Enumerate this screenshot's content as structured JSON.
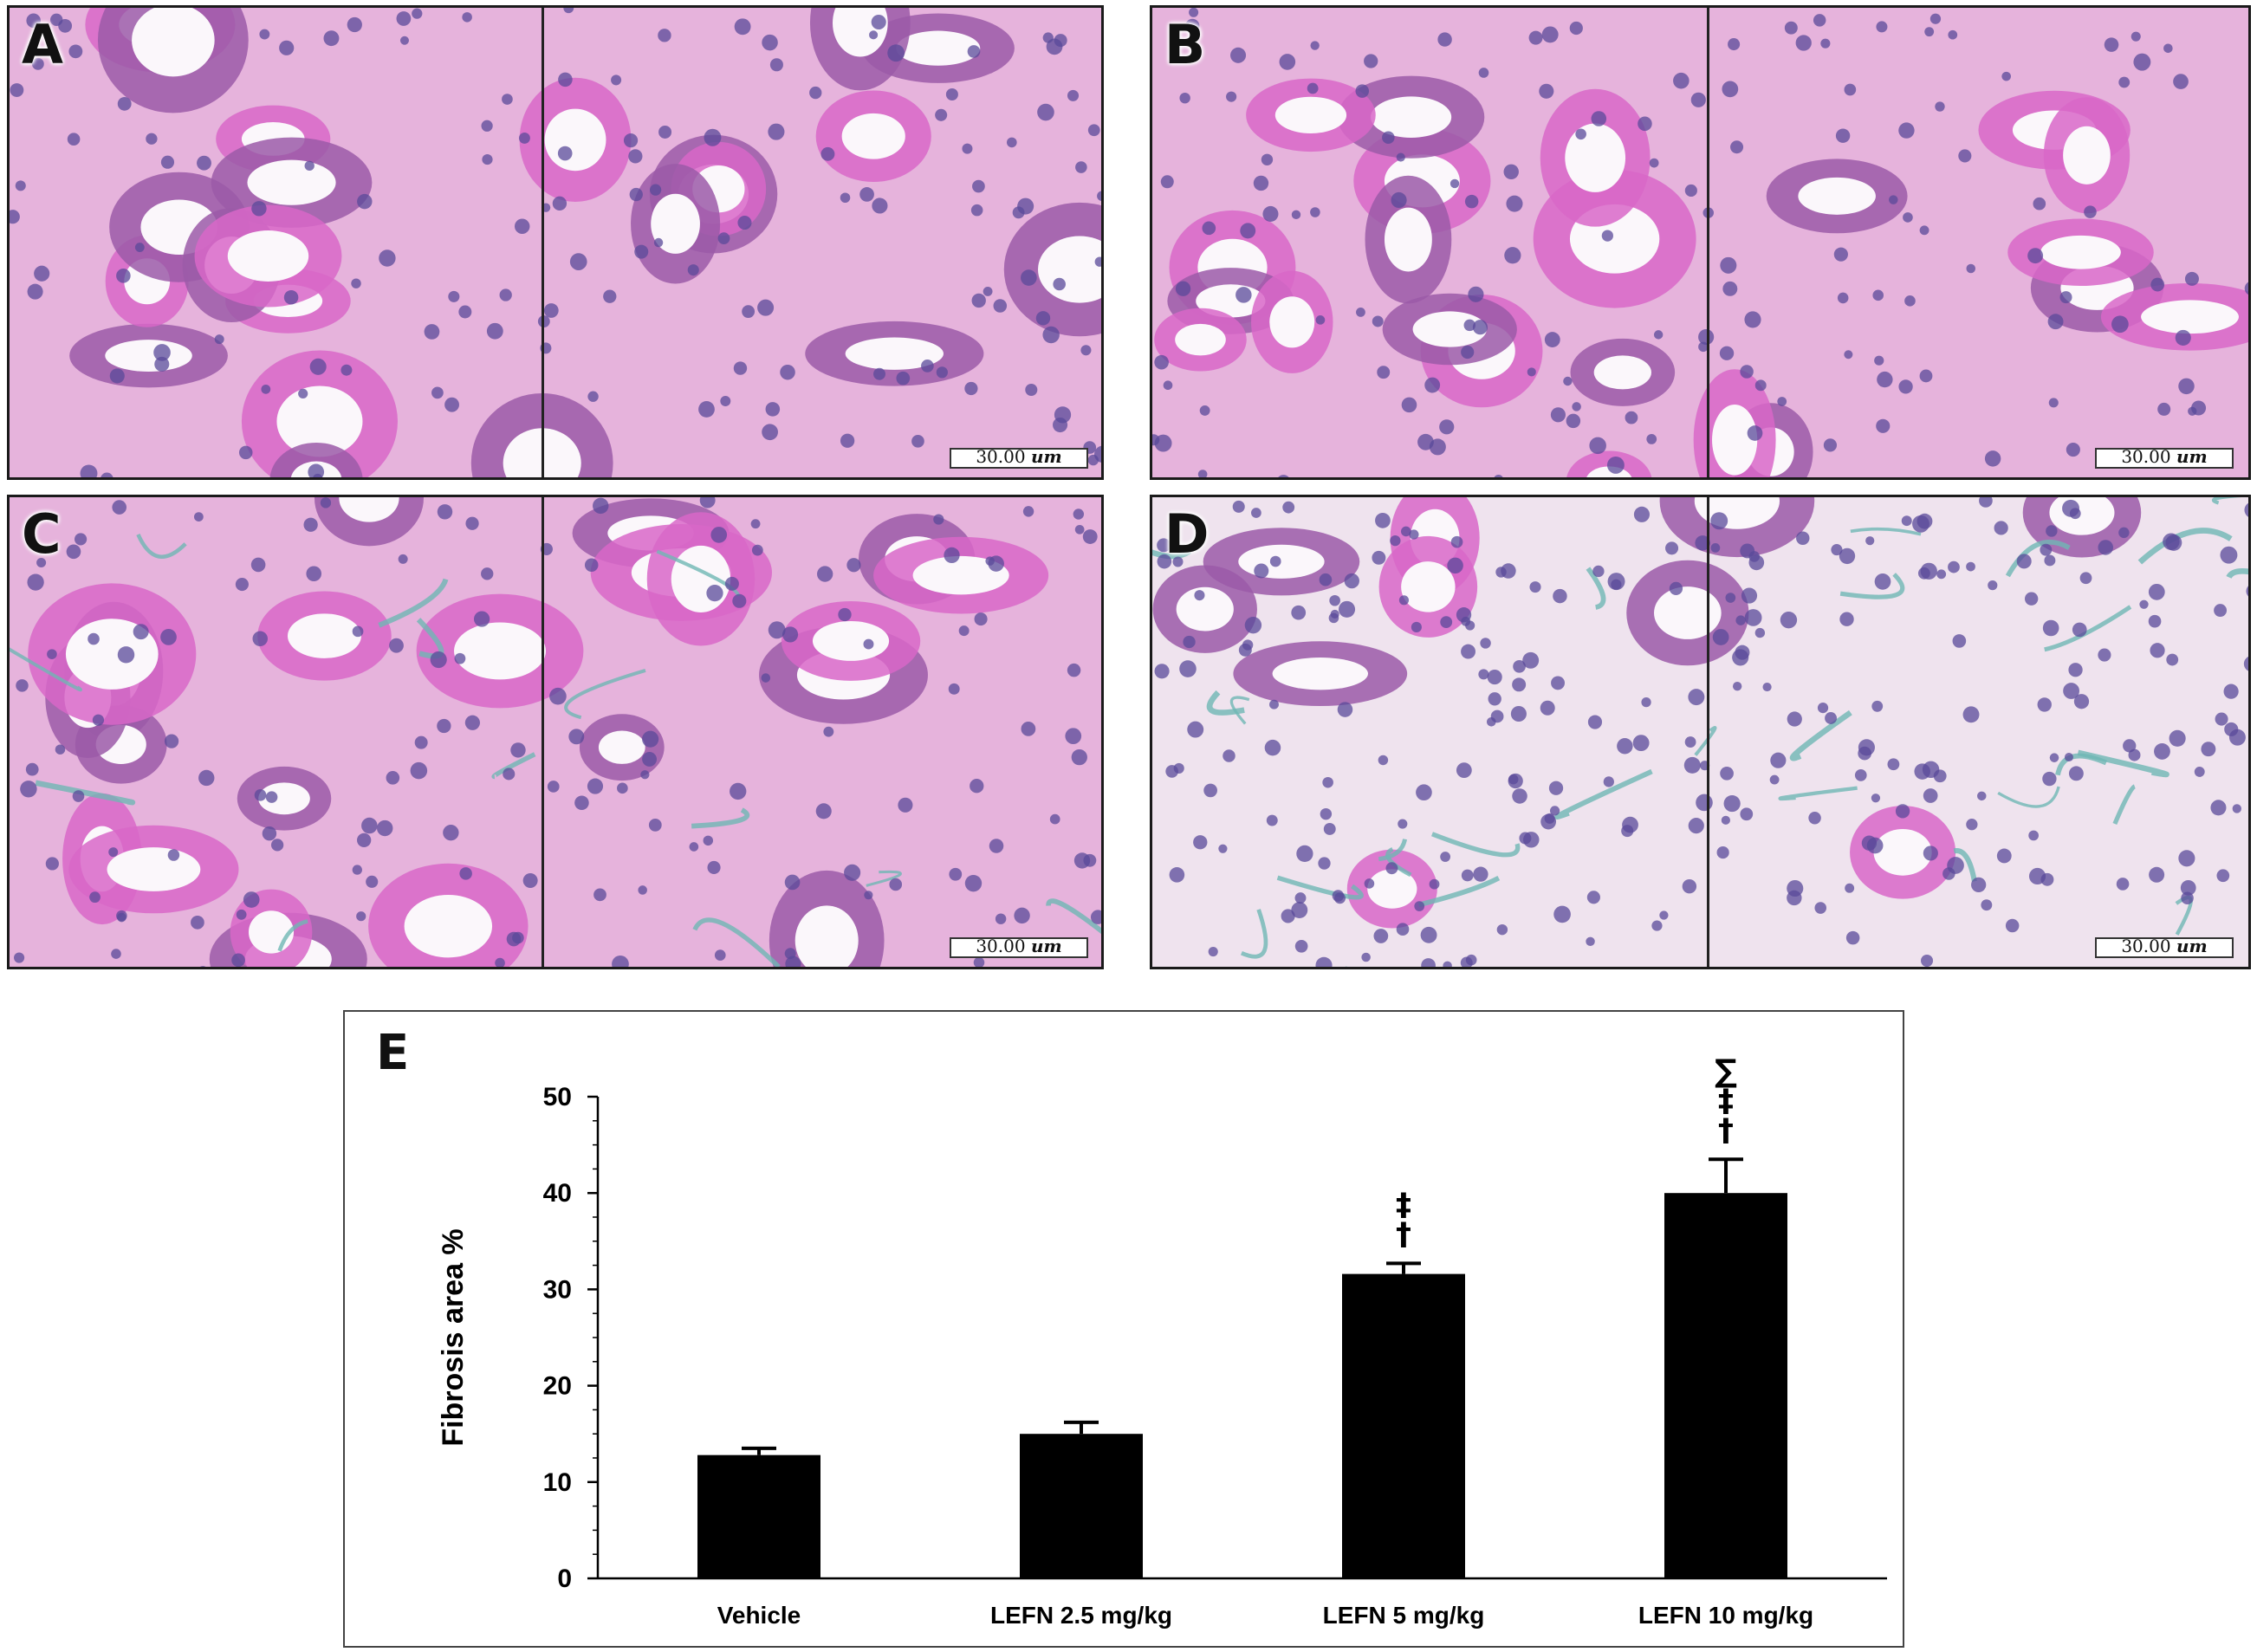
{
  "panels": [
    {
      "letter": "A",
      "scale_value": "30.00",
      "scale_unit": "um"
    },
    {
      "letter": "B",
      "scale_value": "30.00",
      "scale_unit": "um"
    },
    {
      "letter": "C",
      "scale_value": "30.00",
      "scale_unit": "um"
    },
    {
      "letter": "D",
      "scale_value": "30.00",
      "scale_unit": "um"
    }
  ],
  "colors": {
    "tissue_pink": "#d867c8",
    "tissue_purple": "#9b5aa8",
    "nucleus": "#5a4a9a",
    "lumen": "#fbf7fb",
    "fibrosis_green": "#6fb7b4",
    "bar": "#000000"
  },
  "chart_data": {
    "type": "bar",
    "panel_letter": "E",
    "categories": [
      "Vehicle",
      "LEFN 2.5 mg/kg",
      "LEFN 5 mg/kg",
      "LEFN 10 mg/kg"
    ],
    "values": [
      12.8,
      15.0,
      31.6,
      40.0
    ],
    "errors": [
      0.7,
      1.2,
      1.1,
      3.5
    ],
    "significance": [
      [],
      [],
      [
        "‡",
        "†"
      ],
      [
        "∑",
        "‡",
        "†"
      ]
    ],
    "ylabel": "Fibrosis area %",
    "ylim": [
      0,
      50
    ],
    "yticks": [
      0,
      10,
      20,
      30,
      40,
      50
    ],
    "grid": false,
    "bar_color": "#000000"
  }
}
